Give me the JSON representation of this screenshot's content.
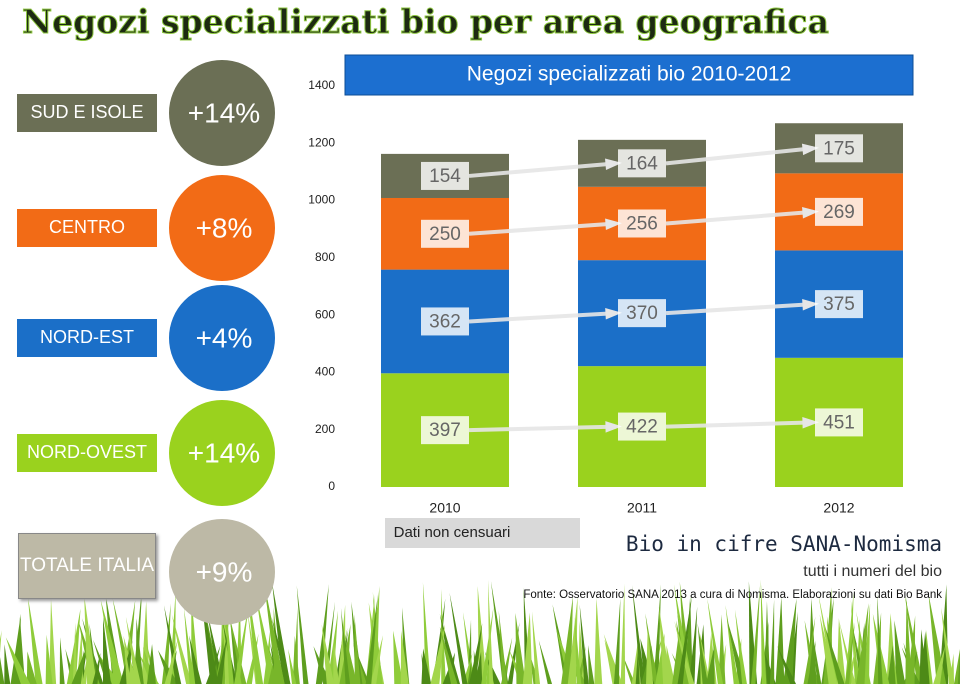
{
  "title": "Negozi specializzati bio per area geografica",
  "region_changes": [
    "+14%",
    "+4%",
    "+8%",
    "+14%"
  ],
  "total": {
    "label": "TOTALE ITALIA",
    "change": "+9%"
  },
  "chart_data": {
    "type": "stacked-bar",
    "title": "Negozi specializzati bio 2010-2012",
    "categories": [
      "2010",
      "2011",
      "2012"
    ],
    "series": [
      {
        "name": "NORD-OVEST",
        "color": "#9ad21e",
        "values": [
          397,
          422,
          451
        ]
      },
      {
        "name": "NORD-EST",
        "color": "#1b6fc8",
        "values": [
          362,
          370,
          375
        ]
      },
      {
        "name": "CENTRO",
        "color": "#f26b16",
        "values": [
          250,
          256,
          269
        ]
      },
      {
        "name": "SUD E ISOLE",
        "color": "#6b6f55",
        "values": [
          154,
          164,
          175
        ]
      }
    ],
    "ylim": [
      0,
      1400
    ],
    "yticks": [
      0,
      200,
      400,
      600,
      800,
      1000,
      1200,
      1400
    ],
    "grid": false,
    "note": "Dati non censuari"
  },
  "footer": {
    "brand": "Bio in cifre SANA-Nomisma",
    "tagline": "tutti i numeri del bio",
    "source": "Fonte: Osservatorio SANA 2013  a cura di Nomisma. Elaborazioni su dati Bio Bank"
  }
}
